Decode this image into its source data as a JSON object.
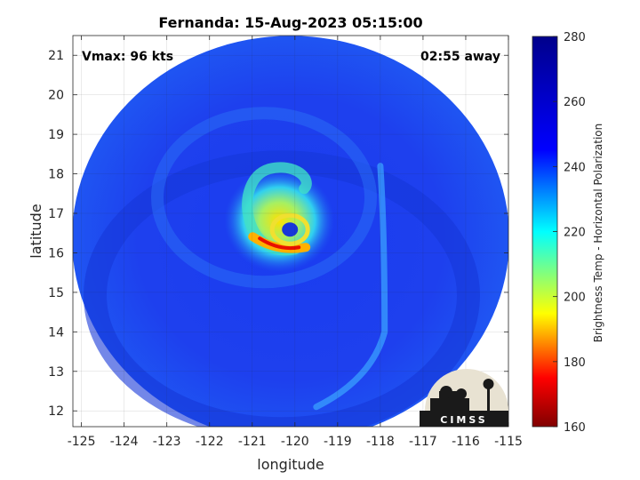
{
  "chart_data": {
    "type": "heatmap",
    "title": "Fernanda: 15-Aug-2023 05:15:00",
    "xlabel": "longitude",
    "ylabel": "latitude",
    "xlim": [
      -125.2,
      -115
    ],
    "ylim": [
      11.6,
      21.5
    ],
    "x_ticks": [
      -125,
      -124,
      -123,
      -122,
      -121,
      -120,
      -119,
      -118,
      -117,
      -116,
      -115
    ],
    "y_ticks": [
      12,
      13,
      14,
      15,
      16,
      17,
      18,
      19,
      20,
      21
    ],
    "grid": true,
    "colorbar": {
      "label": "Brightness Temp - Horizontal Polarization",
      "range": [
        160,
        280
      ],
      "ticks": [
        160,
        180,
        200,
        220,
        240,
        260,
        280
      ],
      "colormap": "parula",
      "colors": [
        "#3e26a8",
        "#4743f8",
        "#2f6ffb",
        "#1e96df",
        "#0aacc9",
        "#1cb8a5",
        "#56bf80",
        "#9bbe5a",
        "#d7ba3c",
        "#fbc537",
        "#f5e425",
        "#f9fb15"
      ]
    },
    "swath": {
      "center_lon": -120.1,
      "center_lat": 16.5,
      "background_tb": 265
    },
    "storm": {
      "eye_lon": -120.2,
      "eye_lat": 16.5,
      "min_tb": 175,
      "vmax_label": "Vmax: 96 kts",
      "time_offset_label": "02:55 away"
    },
    "logo": "CIMSS"
  }
}
